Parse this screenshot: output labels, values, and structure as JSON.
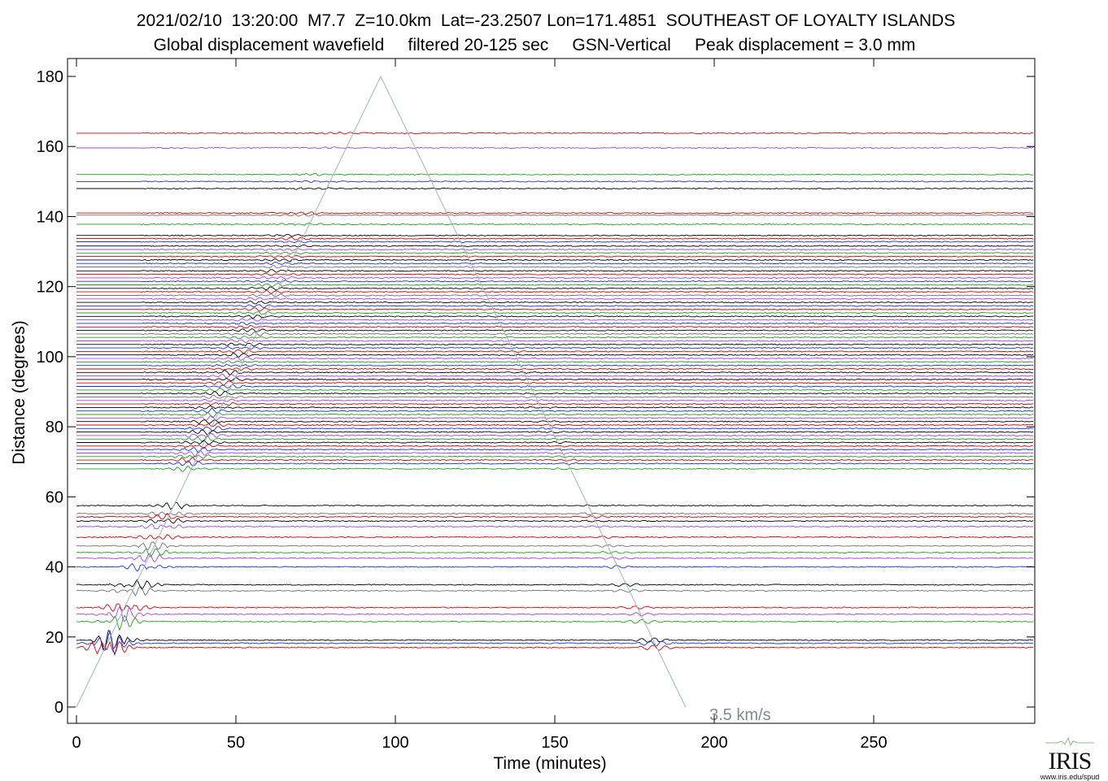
{
  "header": {
    "line1": "2021/02/10  13:20:00  M7.7  Z=10.0km  Lat=-23.2507 Lon=171.4851  SOUTHEAST OF LOYALTY ISLANDS",
    "line2": "Global displacement wavefield     filtered 20-125 sec     GSN-Vertical     Peak displacement = 3.0 mm"
  },
  "logo": {
    "text": "IRIS",
    "url": "www.iris.edu/spud"
  },
  "chart_data": {
    "type": "line",
    "xlabel": "Time (minutes)",
    "ylabel": "Distance (degrees)",
    "xlim": [
      -3,
      300
    ],
    "ylim": [
      -5,
      185
    ],
    "xticks": [
      0,
      50,
      100,
      150,
      200,
      250
    ],
    "yticks": [
      0,
      20,
      40,
      60,
      80,
      100,
      120,
      140,
      160,
      180
    ],
    "grid": false,
    "velocity_line": {
      "label": "3.5 km/s",
      "points": [
        [
          0,
          0
        ],
        [
          95.4,
          180
        ],
        [
          191,
          0
        ]
      ],
      "color": "#a8b4b4"
    },
    "colors": {
      "k": "#000000",
      "r": "#e00000",
      "b": "#1030ff",
      "v": "#a040ff",
      "g": "#20a020",
      "y": "#707070",
      "lv": "#9aa0ff"
    },
    "traces": [
      [
        163.8,
        "r"
      ],
      [
        159.6,
        "v"
      ],
      [
        152.0,
        "g"
      ],
      [
        150.0,
        "b"
      ],
      [
        148.0,
        "k"
      ],
      [
        141.0,
        "r"
      ],
      [
        140.4,
        "y"
      ],
      [
        137.8,
        "g"
      ],
      [
        134.6,
        "k"
      ],
      [
        133.7,
        "r"
      ],
      [
        132.8,
        "b"
      ],
      [
        131.6,
        "k"
      ],
      [
        130.6,
        "v"
      ],
      [
        129.6,
        "g"
      ],
      [
        128.6,
        "r"
      ],
      [
        127.6,
        "k"
      ],
      [
        126.6,
        "b"
      ],
      [
        125.6,
        "y"
      ],
      [
        124.5,
        "k"
      ],
      [
        123.5,
        "r"
      ],
      [
        122.5,
        "v"
      ],
      [
        121.5,
        "b"
      ],
      [
        120.5,
        "g"
      ],
      [
        119.5,
        "k"
      ],
      [
        118.5,
        "r"
      ],
      [
        117.5,
        "y"
      ],
      [
        116.5,
        "v"
      ],
      [
        115.5,
        "k"
      ],
      [
        114.5,
        "b"
      ],
      [
        113.5,
        "r"
      ],
      [
        112.5,
        "g"
      ],
      [
        111.5,
        "k"
      ],
      [
        110.5,
        "v"
      ],
      [
        109.5,
        "b"
      ],
      [
        108.5,
        "r"
      ],
      [
        107.5,
        "k"
      ],
      [
        106.5,
        "y"
      ],
      [
        105.5,
        "g"
      ],
      [
        104.5,
        "v"
      ],
      [
        103.5,
        "k"
      ],
      [
        102.5,
        "b"
      ],
      [
        101.5,
        "r"
      ],
      [
        100.5,
        "k"
      ],
      [
        99.5,
        "v"
      ],
      [
        98.5,
        "g"
      ],
      [
        97.5,
        "b"
      ],
      [
        96.5,
        "r"
      ],
      [
        95.5,
        "k"
      ],
      [
        94.5,
        "v"
      ],
      [
        93.5,
        "k"
      ],
      [
        92.5,
        "r"
      ],
      [
        91.5,
        "b"
      ],
      [
        90.5,
        "g"
      ],
      [
        89.5,
        "k"
      ],
      [
        88.5,
        "y"
      ],
      [
        87.5,
        "v"
      ],
      [
        86.5,
        "r"
      ],
      [
        85.5,
        "k"
      ],
      [
        84.5,
        "b"
      ],
      [
        83.5,
        "g"
      ],
      [
        82.5,
        "v"
      ],
      [
        81.5,
        "k"
      ],
      [
        80.5,
        "r"
      ],
      [
        79.5,
        "b"
      ],
      [
        78.5,
        "k"
      ],
      [
        77.5,
        "v"
      ],
      [
        76.5,
        "g"
      ],
      [
        75.5,
        "k"
      ],
      [
        74.5,
        "r"
      ],
      [
        73.5,
        "b"
      ],
      [
        72.5,
        "v"
      ],
      [
        71.5,
        "g"
      ],
      [
        70.5,
        "r"
      ],
      [
        69.5,
        "b"
      ],
      [
        68.0,
        "g"
      ],
      [
        57.5,
        "k"
      ],
      [
        55.2,
        "y"
      ],
      [
        54.3,
        "r"
      ],
      [
        53.1,
        "k"
      ],
      [
        51.5,
        "v"
      ],
      [
        48.5,
        "r"
      ],
      [
        46.0,
        "y"
      ],
      [
        44.1,
        "g"
      ],
      [
        42.5,
        "v"
      ],
      [
        40.0,
        "b"
      ],
      [
        34.9,
        "k"
      ],
      [
        33.2,
        "y"
      ],
      [
        28.4,
        "r"
      ],
      [
        26.5,
        "v"
      ],
      [
        24.4,
        "g"
      ],
      [
        19.1,
        "k"
      ],
      [
        18.2,
        "b"
      ],
      [
        17.0,
        "r"
      ]
    ]
  }
}
